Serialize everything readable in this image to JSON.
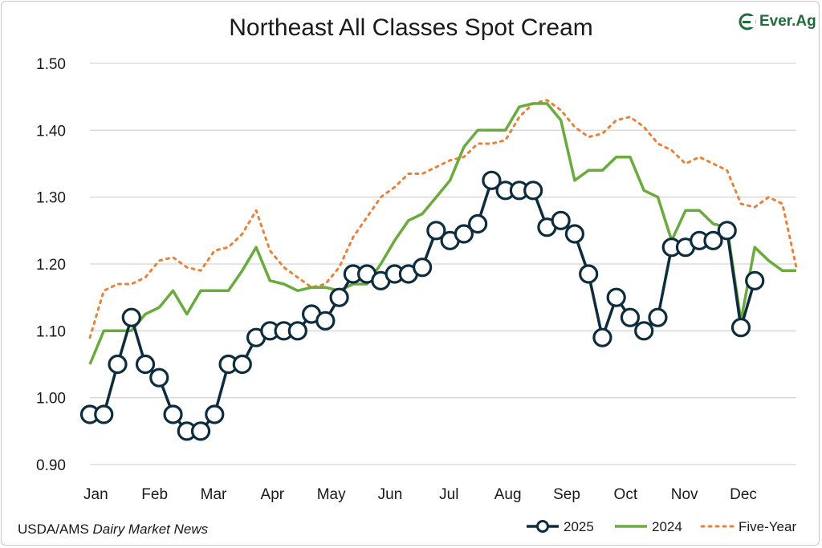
{
  "header": {
    "title": "Northeast All Classes Spot Cream",
    "brand": "Ever.Ag"
  },
  "footer": {
    "source_prefix": "USDA/AMS ",
    "source_italic": "Dairy Market News"
  },
  "colors": {
    "s2025": "#0d2d3e",
    "s2024": "#6aab3d",
    "five": "#e8823a",
    "grid": "#d6d6d6",
    "brand": "#1f6b3a"
  },
  "chart_data": {
    "type": "line",
    "title": "Northeast All Classes Spot Cream",
    "xlabel": "",
    "ylabel": "",
    "ylim": [
      0.9,
      1.5
    ],
    "yticks": [
      "0.90",
      "1.00",
      "1.10",
      "1.20",
      "1.30",
      "1.40",
      "1.50"
    ],
    "x_month_labels": [
      "Jan",
      "Feb",
      "Mar",
      "Apr",
      "May",
      "Jun",
      "Jul",
      "Aug",
      "Sep",
      "Oct",
      "Nov",
      "Dec"
    ],
    "grid": true,
    "legend_position": "bottom-right",
    "series": [
      {
        "name": "2025",
        "style": "line-with-circle-markers",
        "week": [
          1,
          2,
          3,
          4,
          5,
          6,
          7,
          8,
          9,
          10,
          11,
          12,
          13,
          14,
          15,
          16,
          17,
          18,
          19,
          20,
          21,
          22,
          23,
          24,
          25,
          26,
          27,
          28,
          29,
          30,
          31,
          32,
          33,
          34,
          35,
          36,
          37,
          38,
          39,
          40,
          41,
          42,
          43,
          44,
          45,
          46,
          47,
          48,
          49
        ],
        "values": [
          0.975,
          0.975,
          1.05,
          1.12,
          1.05,
          1.03,
          0.975,
          0.95,
          0.95,
          0.975,
          1.05,
          1.05,
          1.09,
          1.1,
          1.1,
          1.1,
          1.125,
          1.115,
          1.15,
          1.185,
          1.185,
          1.175,
          1.185,
          1.185,
          1.195,
          1.25,
          1.235,
          1.245,
          1.26,
          1.325,
          1.31,
          1.31,
          1.31,
          1.255,
          1.265,
          1.245,
          1.185,
          1.09,
          1.15,
          1.12,
          1.1,
          1.12,
          1.225,
          1.225,
          1.235,
          1.235,
          1.25,
          1.105,
          1.175
        ]
      },
      {
        "name": "2024",
        "style": "solid",
        "week": [
          1,
          2,
          3,
          4,
          5,
          6,
          7,
          8,
          9,
          10,
          11,
          12,
          13,
          14,
          15,
          16,
          17,
          18,
          19,
          20,
          21,
          22,
          23,
          24,
          25,
          26,
          27,
          28,
          29,
          30,
          31,
          32,
          33,
          34,
          35,
          36,
          37,
          38,
          39,
          40,
          41,
          42,
          43,
          44,
          45,
          46,
          47,
          48,
          49,
          50,
          51,
          52
        ],
        "values": [
          1.05,
          1.1,
          1.1,
          1.1,
          1.125,
          1.135,
          1.16,
          1.125,
          1.16,
          1.16,
          1.16,
          1.19,
          1.225,
          1.175,
          1.17,
          1.16,
          1.165,
          1.165,
          1.16,
          1.17,
          1.17,
          1.2,
          1.235,
          1.265,
          1.275,
          1.3,
          1.325,
          1.375,
          1.4,
          1.4,
          1.4,
          1.435,
          1.44,
          1.44,
          1.415,
          1.325,
          1.34,
          1.34,
          1.36,
          1.36,
          1.31,
          1.3,
          1.235,
          1.28,
          1.28,
          1.26,
          1.255,
          1.115,
          1.225,
          1.205,
          1.19,
          1.19
        ]
      },
      {
        "name": "Five-Year",
        "style": "dotted",
        "week": [
          1,
          2,
          3,
          4,
          5,
          6,
          7,
          8,
          9,
          10,
          11,
          12,
          13,
          14,
          15,
          16,
          17,
          18,
          19,
          20,
          21,
          22,
          23,
          24,
          25,
          26,
          27,
          28,
          29,
          30,
          31,
          32,
          33,
          34,
          35,
          36,
          37,
          38,
          39,
          40,
          41,
          42,
          43,
          44,
          45,
          46,
          47,
          48,
          49,
          50,
          51,
          52
        ],
        "values": [
          1.09,
          1.16,
          1.17,
          1.17,
          1.18,
          1.205,
          1.21,
          1.195,
          1.19,
          1.22,
          1.225,
          1.245,
          1.28,
          1.22,
          1.195,
          1.18,
          1.165,
          1.17,
          1.195,
          1.24,
          1.27,
          1.3,
          1.315,
          1.335,
          1.335,
          1.345,
          1.355,
          1.36,
          1.38,
          1.38,
          1.385,
          1.42,
          1.44,
          1.445,
          1.43,
          1.405,
          1.39,
          1.395,
          1.415,
          1.42,
          1.405,
          1.38,
          1.37,
          1.35,
          1.36,
          1.35,
          1.34,
          1.29,
          1.285,
          1.3,
          1.29,
          1.195
        ]
      }
    ]
  }
}
